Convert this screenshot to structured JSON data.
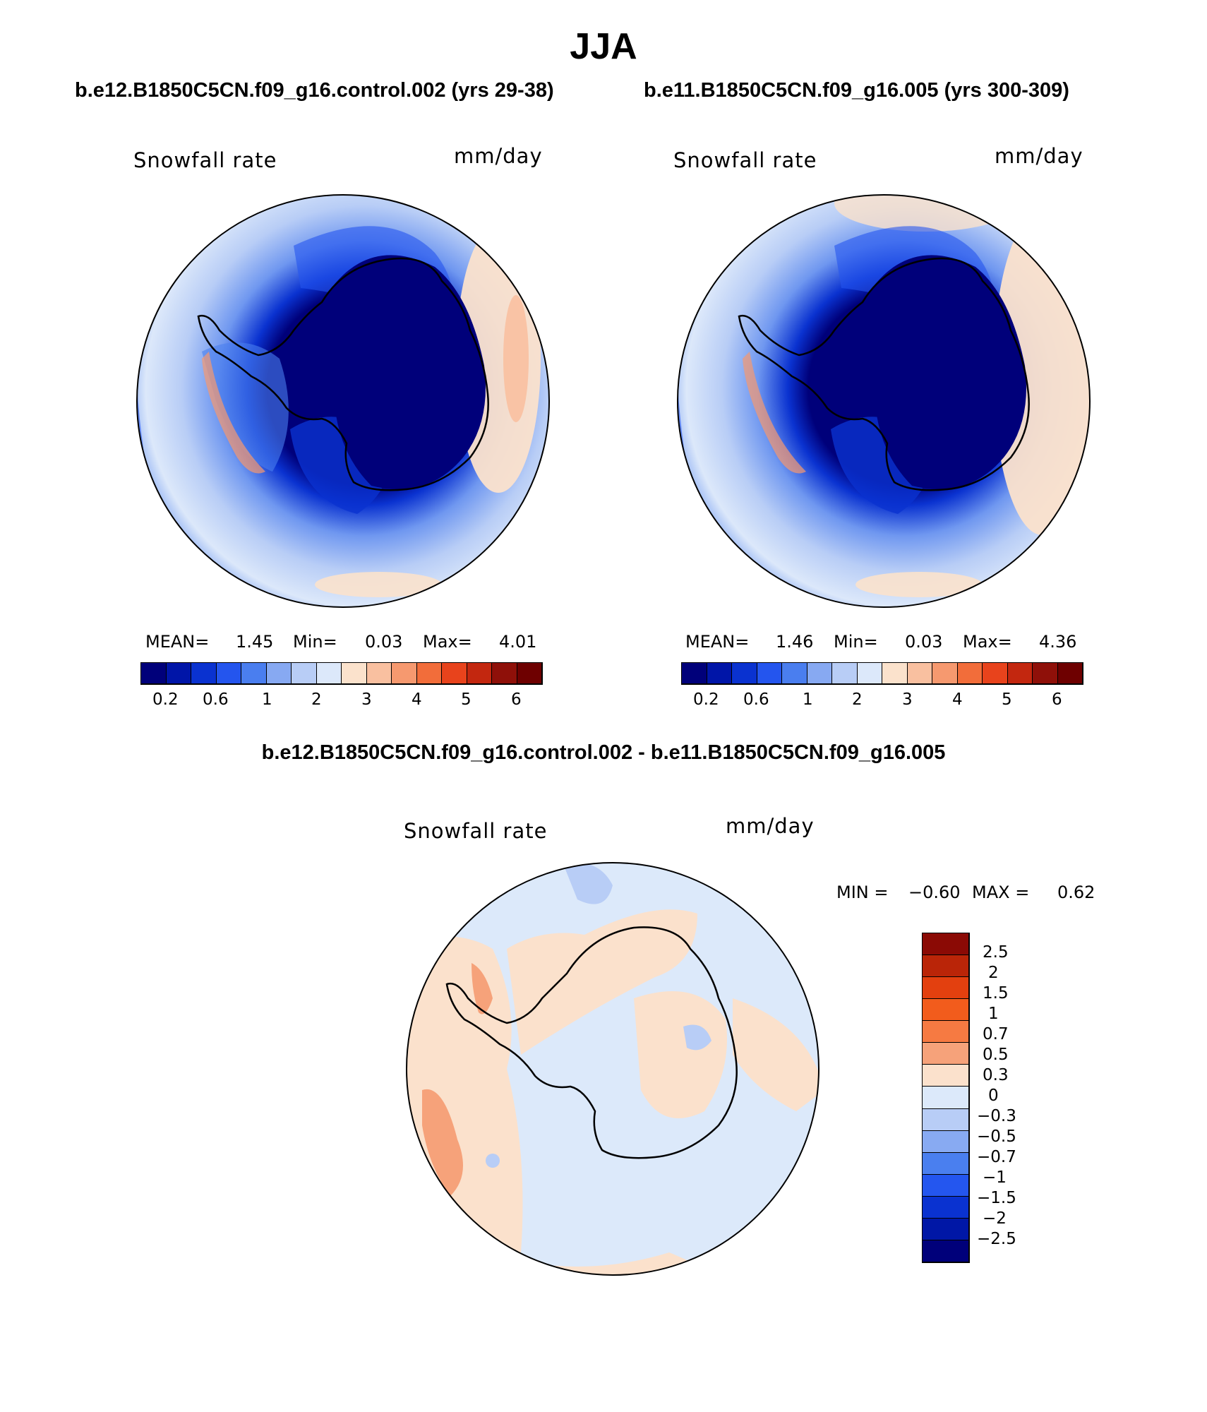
{
  "season": "JJA",
  "panels": [
    {
      "case_title": "b.e12.B1850C5CN.f09_g16.control.002 (yrs 29-38)",
      "variable": "Snowfall rate",
      "units": "mm/day",
      "mean_label": "MEAN=",
      "mean": "1.45",
      "min_label": "Min=",
      "min": "0.03",
      "max_label": "Max=",
      "max": "4.01"
    },
    {
      "case_title": "b.e11.B1850C5CN.f09_g16.005 (yrs 300-309)",
      "variable": "Snowfall rate",
      "units": "mm/day",
      "mean_label": "MEAN=",
      "mean": "1.46",
      "min_label": "Min=",
      "min": "0.03",
      "max_label": "Max=",
      "max": "4.36"
    }
  ],
  "diff_panel": {
    "title": "b.e12.B1850C5CN.f09_g16.control.002 - b.e11.B1850C5CN.f09_g16.005",
    "variable": "Snowfall rate",
    "units": "mm/day",
    "min_label": "MIN =",
    "min": "−0.60",
    "max_label": "MAX =",
    "max": "0.62"
  },
  "colorbar_abs": {
    "colors": [
      "#00007a",
      "#0015a8",
      "#0a32d0",
      "#2455ee",
      "#4a7eef",
      "#87a9f2",
      "#b8cdf6",
      "#dce8fa",
      "#fbe2cc",
      "#f9c0a0",
      "#f6996f",
      "#f26d3a",
      "#e8431c",
      "#c3270f",
      "#8f1009",
      "#6e0000"
    ],
    "tick_labels": [
      "0.2",
      "0.6",
      "1",
      "2",
      "3",
      "4",
      "5",
      "6"
    ]
  },
  "colorbar_diff": {
    "colors": [
      "#8b0a05",
      "#ba2508",
      "#e3400f",
      "#f25c1c",
      "#f67a42",
      "#f6a27a",
      "#fbe1cc",
      "#dce9fa",
      "#b8cdf6",
      "#88aaf2",
      "#4a7fef",
      "#2456ef",
      "#0a32d0",
      "#0017a6",
      "#00007a"
    ],
    "tick_labels": [
      "2.5",
      "2",
      "1.5",
      "1",
      "0.7",
      "0.5",
      "0.3",
      "0",
      "−0.3",
      "−0.5",
      "−0.7",
      "−1",
      "−1.5",
      "−2",
      "−2.5"
    ]
  }
}
